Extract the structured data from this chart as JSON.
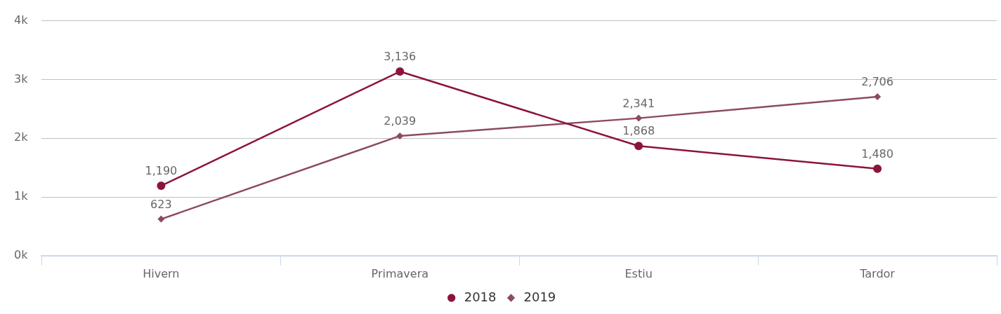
{
  "chart_data": {
    "type": "line",
    "categories": [
      "Hivern",
      "Primavera",
      "Estiu",
      "Tardor"
    ],
    "series": [
      {
        "name": "2018",
        "color": "#8b1538",
        "values": [
          1190,
          3136,
          1868,
          1480
        ],
        "value_labels": [
          "1,190",
          "3,136",
          "1,868",
          "1,480"
        ],
        "marker": "circle"
      },
      {
        "name": "2019",
        "color": "#8c4a63",
        "values": [
          623,
          2039,
          2341,
          2706
        ],
        "value_labels": [
          "623",
          "2,039",
          "2,341",
          "2,706"
        ],
        "marker": "diamond"
      }
    ],
    "ylim": [
      0,
      4000
    ],
    "yticks": [
      {
        "value": 0,
        "label": "0k"
      },
      {
        "value": 1000,
        "label": "1k"
      },
      {
        "value": 2000,
        "label": "2k"
      },
      {
        "value": 3000,
        "label": "3k"
      },
      {
        "value": 4000,
        "label": "4k"
      }
    ],
    "grid": "y",
    "legend": "bottom",
    "line_style": "solid"
  }
}
